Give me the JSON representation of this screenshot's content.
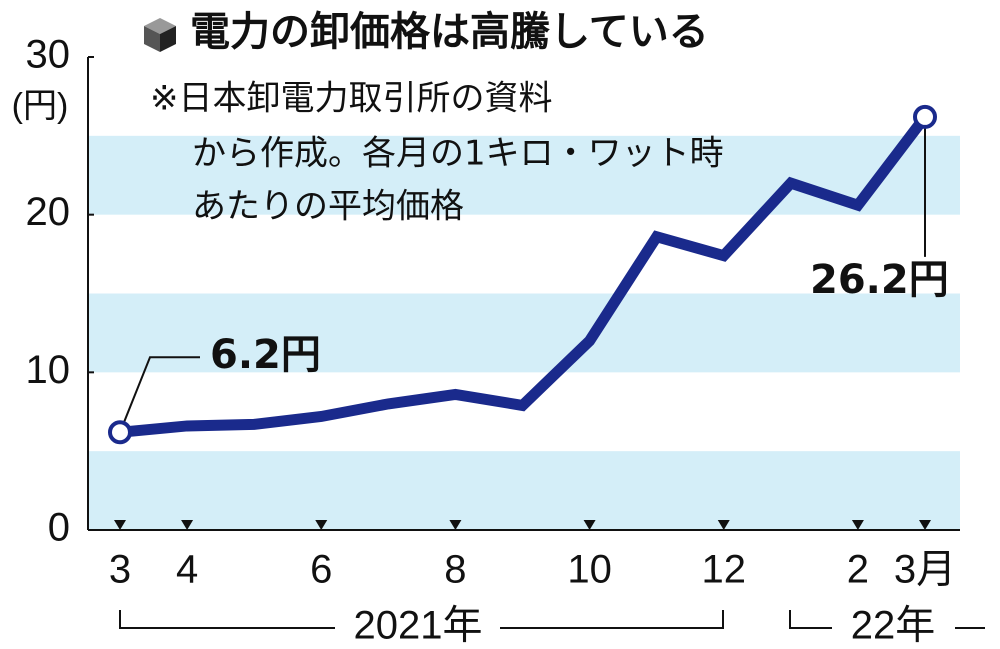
{
  "chart_data": {
    "type": "line",
    "title": "電力の卸価格は高騰している",
    "note": [
      "※日本卸電力取引所の資料",
      "から作成。各月の1キロ・ワット時",
      "あたりの平均価格"
    ],
    "y_label": "(円)",
    "categories": [
      "3",
      "4",
      null,
      "6",
      null,
      "8",
      null,
      "10",
      null,
      "12",
      null,
      "2",
      "3月"
    ],
    "year_labels": [
      "2021年",
      "22年"
    ],
    "series": [
      {
        "color": "#1a2a8c",
        "values": [
          6.2,
          6.6,
          6.7,
          7.2,
          8.0,
          8.6,
          7.9,
          12.0,
          18.6,
          17.4,
          22.0,
          20.6,
          26.2
        ],
        "value_labels": [
          "6.2円",
          null,
          null,
          null,
          null,
          null,
          null,
          null,
          null,
          null,
          null,
          null,
          "26.2円"
        ]
      }
    ],
    "ylim": [
      0,
      30
    ],
    "yticks": [
      0,
      10,
      20,
      30
    ],
    "band_color": "#d4eef8"
  }
}
